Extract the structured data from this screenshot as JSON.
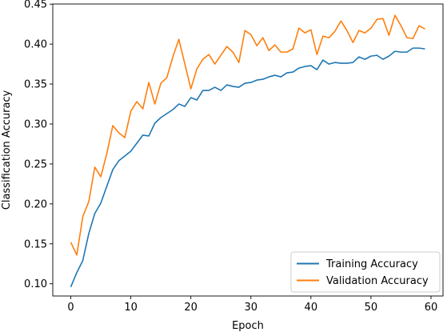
{
  "chart_data": {
    "type": "line",
    "title": "",
    "xlabel": "Epoch",
    "ylabel": "Classification Accuracy",
    "xlim": [
      -3,
      62
    ],
    "ylim": [
      0.0847,
      0.4502
    ],
    "xticks": [
      0,
      10,
      20,
      30,
      40,
      50,
      60
    ],
    "xtick_labels": [
      "0",
      "10",
      "20",
      "30",
      "40",
      "50",
      "60"
    ],
    "yticks": [
      0.1,
      0.15,
      0.2,
      0.25,
      0.3,
      0.35,
      0.4,
      0.45
    ],
    "ytick_labels": [
      "0.10",
      "0.15",
      "0.20",
      "0.25",
      "0.30",
      "0.35",
      "0.40",
      "0.45"
    ],
    "grid": false,
    "legend_position": "bottom-right",
    "x": [
      0,
      1,
      2,
      3,
      4,
      5,
      6,
      7,
      8,
      9,
      10,
      11,
      12,
      13,
      14,
      15,
      16,
      17,
      18,
      19,
      20,
      21,
      22,
      23,
      24,
      25,
      26,
      27,
      28,
      29,
      30,
      31,
      32,
      33,
      34,
      35,
      36,
      37,
      38,
      39,
      40,
      41,
      42,
      43,
      44,
      45,
      46,
      47,
      48,
      49,
      50,
      51,
      52,
      53,
      54,
      55,
      56,
      57,
      58,
      59
    ],
    "series": [
      {
        "name": "Training Accuracy",
        "color": "#1f77b4",
        "values": [
          0.096,
          0.114,
          0.129,
          0.163,
          0.188,
          0.201,
          0.222,
          0.243,
          0.254,
          0.26,
          0.266,
          0.276,
          0.286,
          0.285,
          0.301,
          0.308,
          0.313,
          0.318,
          0.325,
          0.322,
          0.333,
          0.33,
          0.342,
          0.342,
          0.346,
          0.342,
          0.349,
          0.347,
          0.346,
          0.351,
          0.352,
          0.355,
          0.356,
          0.359,
          0.361,
          0.359,
          0.364,
          0.365,
          0.37,
          0.372,
          0.373,
          0.368,
          0.38,
          0.375,
          0.377,
          0.376,
          0.376,
          0.377,
          0.384,
          0.381,
          0.385,
          0.386,
          0.381,
          0.385,
          0.391,
          0.39,
          0.39,
          0.395,
          0.395,
          0.394
        ]
      },
      {
        "name": "Validation Accuracy",
        "color": "#ff7f0e",
        "values": [
          0.152,
          0.136,
          0.184,
          0.203,
          0.246,
          0.234,
          0.263,
          0.298,
          0.289,
          0.283,
          0.316,
          0.328,
          0.319,
          0.352,
          0.325,
          0.351,
          0.358,
          0.384,
          0.406,
          0.375,
          0.344,
          0.369,
          0.381,
          0.387,
          0.375,
          0.386,
          0.397,
          0.39,
          0.377,
          0.417,
          0.412,
          0.398,
          0.408,
          0.392,
          0.399,
          0.39,
          0.39,
          0.394,
          0.42,
          0.414,
          0.418,
          0.387,
          0.41,
          0.408,
          0.416,
          0.429,
          0.417,
          0.402,
          0.417,
          0.414,
          0.42,
          0.431,
          0.432,
          0.411,
          0.436,
          0.423,
          0.408,
          0.407,
          0.423,
          0.419
        ]
      }
    ]
  }
}
